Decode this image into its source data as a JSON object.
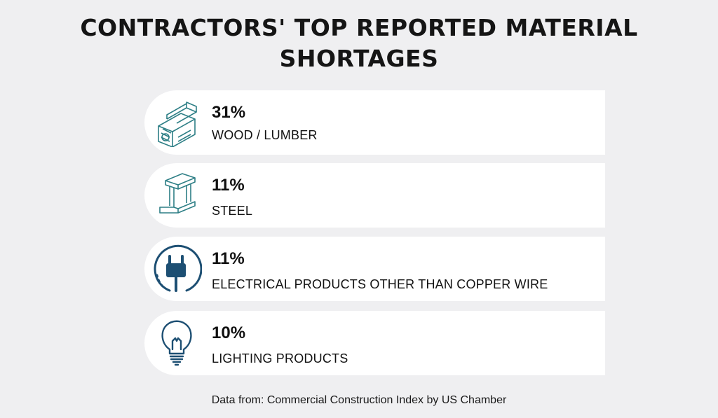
{
  "title": "CONTRACTORS' TOP REPORTED MATERIAL SHORTAGES",
  "source": "Data from: Commercial Construction Index by US Chamber",
  "colors": {
    "background": "#efeff1",
    "card": "#ffffff",
    "icon_teal": "#2e7f86",
    "icon_navy": "#1d4f73"
  },
  "chart_data": {
    "type": "table",
    "title": "CONTRACTORS' TOP REPORTED MATERIAL SHORTAGES",
    "unit": "%",
    "rows": [
      {
        "label": "WOOD / LUMBER",
        "value": 31,
        "value_label": "31%",
        "icon": "lumber-icon"
      },
      {
        "label": "STEEL",
        "value": 11,
        "value_label": "11%",
        "icon": "steel-beam-icon"
      },
      {
        "label": "ELECTRICAL PRODUCTS OTHER THAN COPPER WIRE",
        "value": 11,
        "value_label": "11%",
        "icon": "electric-plug-icon"
      },
      {
        "label": "LIGHTING PRODUCTS",
        "value": 10,
        "value_label": "10%",
        "icon": "light-bulb-icon"
      }
    ]
  }
}
